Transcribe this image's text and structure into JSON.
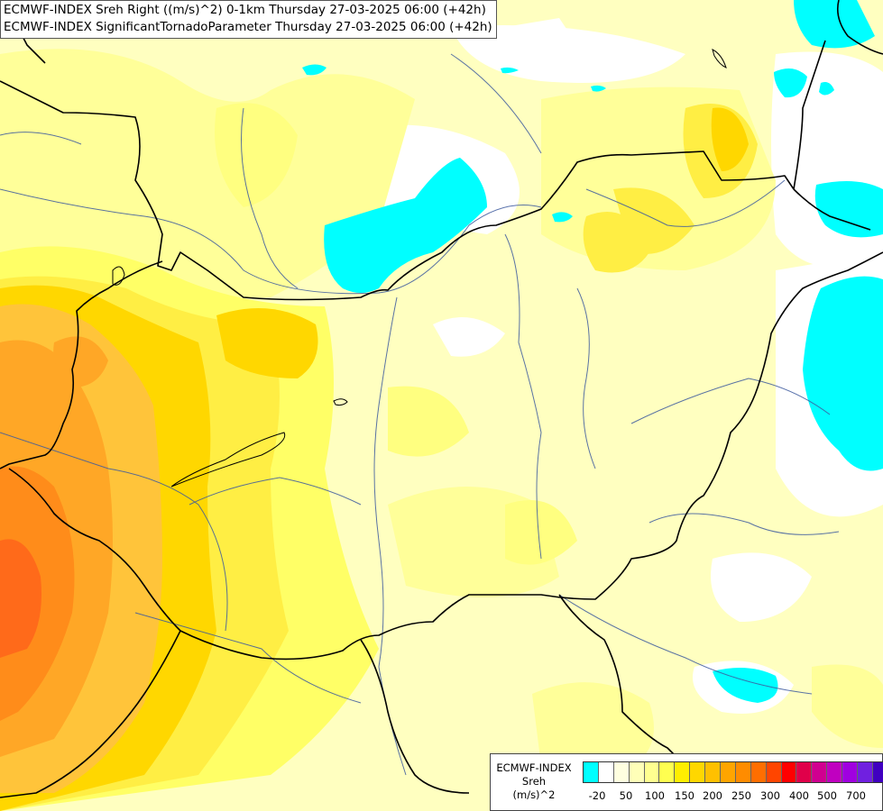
{
  "header": {
    "line1": "ECMWF-INDEX Sreh Right ((m/s)^2) 0-1km Thursday 27-03-2025 06:00 (+42h)",
    "line2": "ECMWF-INDEX SignificantTornadoParameter Thursday 27-03-2025 06:00 (+42h)"
  },
  "legend": {
    "title1": "ECMWF-INDEX",
    "title2": "Sreh",
    "title3": "(m/s)^2",
    "colors": [
      "#00ffff",
      "#ffffff",
      "#ffffe0",
      "#ffffb8",
      "#ffff90",
      "#ffff50",
      "#ffee00",
      "#ffd700",
      "#ffc000",
      "#ffa500",
      "#ff8c00",
      "#ff6e00",
      "#ff4500",
      "#ff0000",
      "#e0004a",
      "#d00090",
      "#c000c0",
      "#a000e0",
      "#7020e0",
      "#4000c0",
      "#000080"
    ],
    "ticks": [
      "-20",
      "50",
      "100",
      "150",
      "200",
      "250",
      "300",
      "400",
      "500",
      "700"
    ]
  },
  "map": {
    "colors": {
      "background": "#ffffc0",
      "white": "#ffffff",
      "cyan": "#00ffff",
      "light_yellow": "#ffff99",
      "yellow": "#ffff66",
      "gold": "#ffee44",
      "amber": "#ffd700",
      "light_orange": "#ffc43a",
      "orange": "#ffa726",
      "dark_orange": "#ff8c1a",
      "red_orange": "#ff6a1a",
      "border": "#000000",
      "river": "#3d5a9e"
    }
  }
}
